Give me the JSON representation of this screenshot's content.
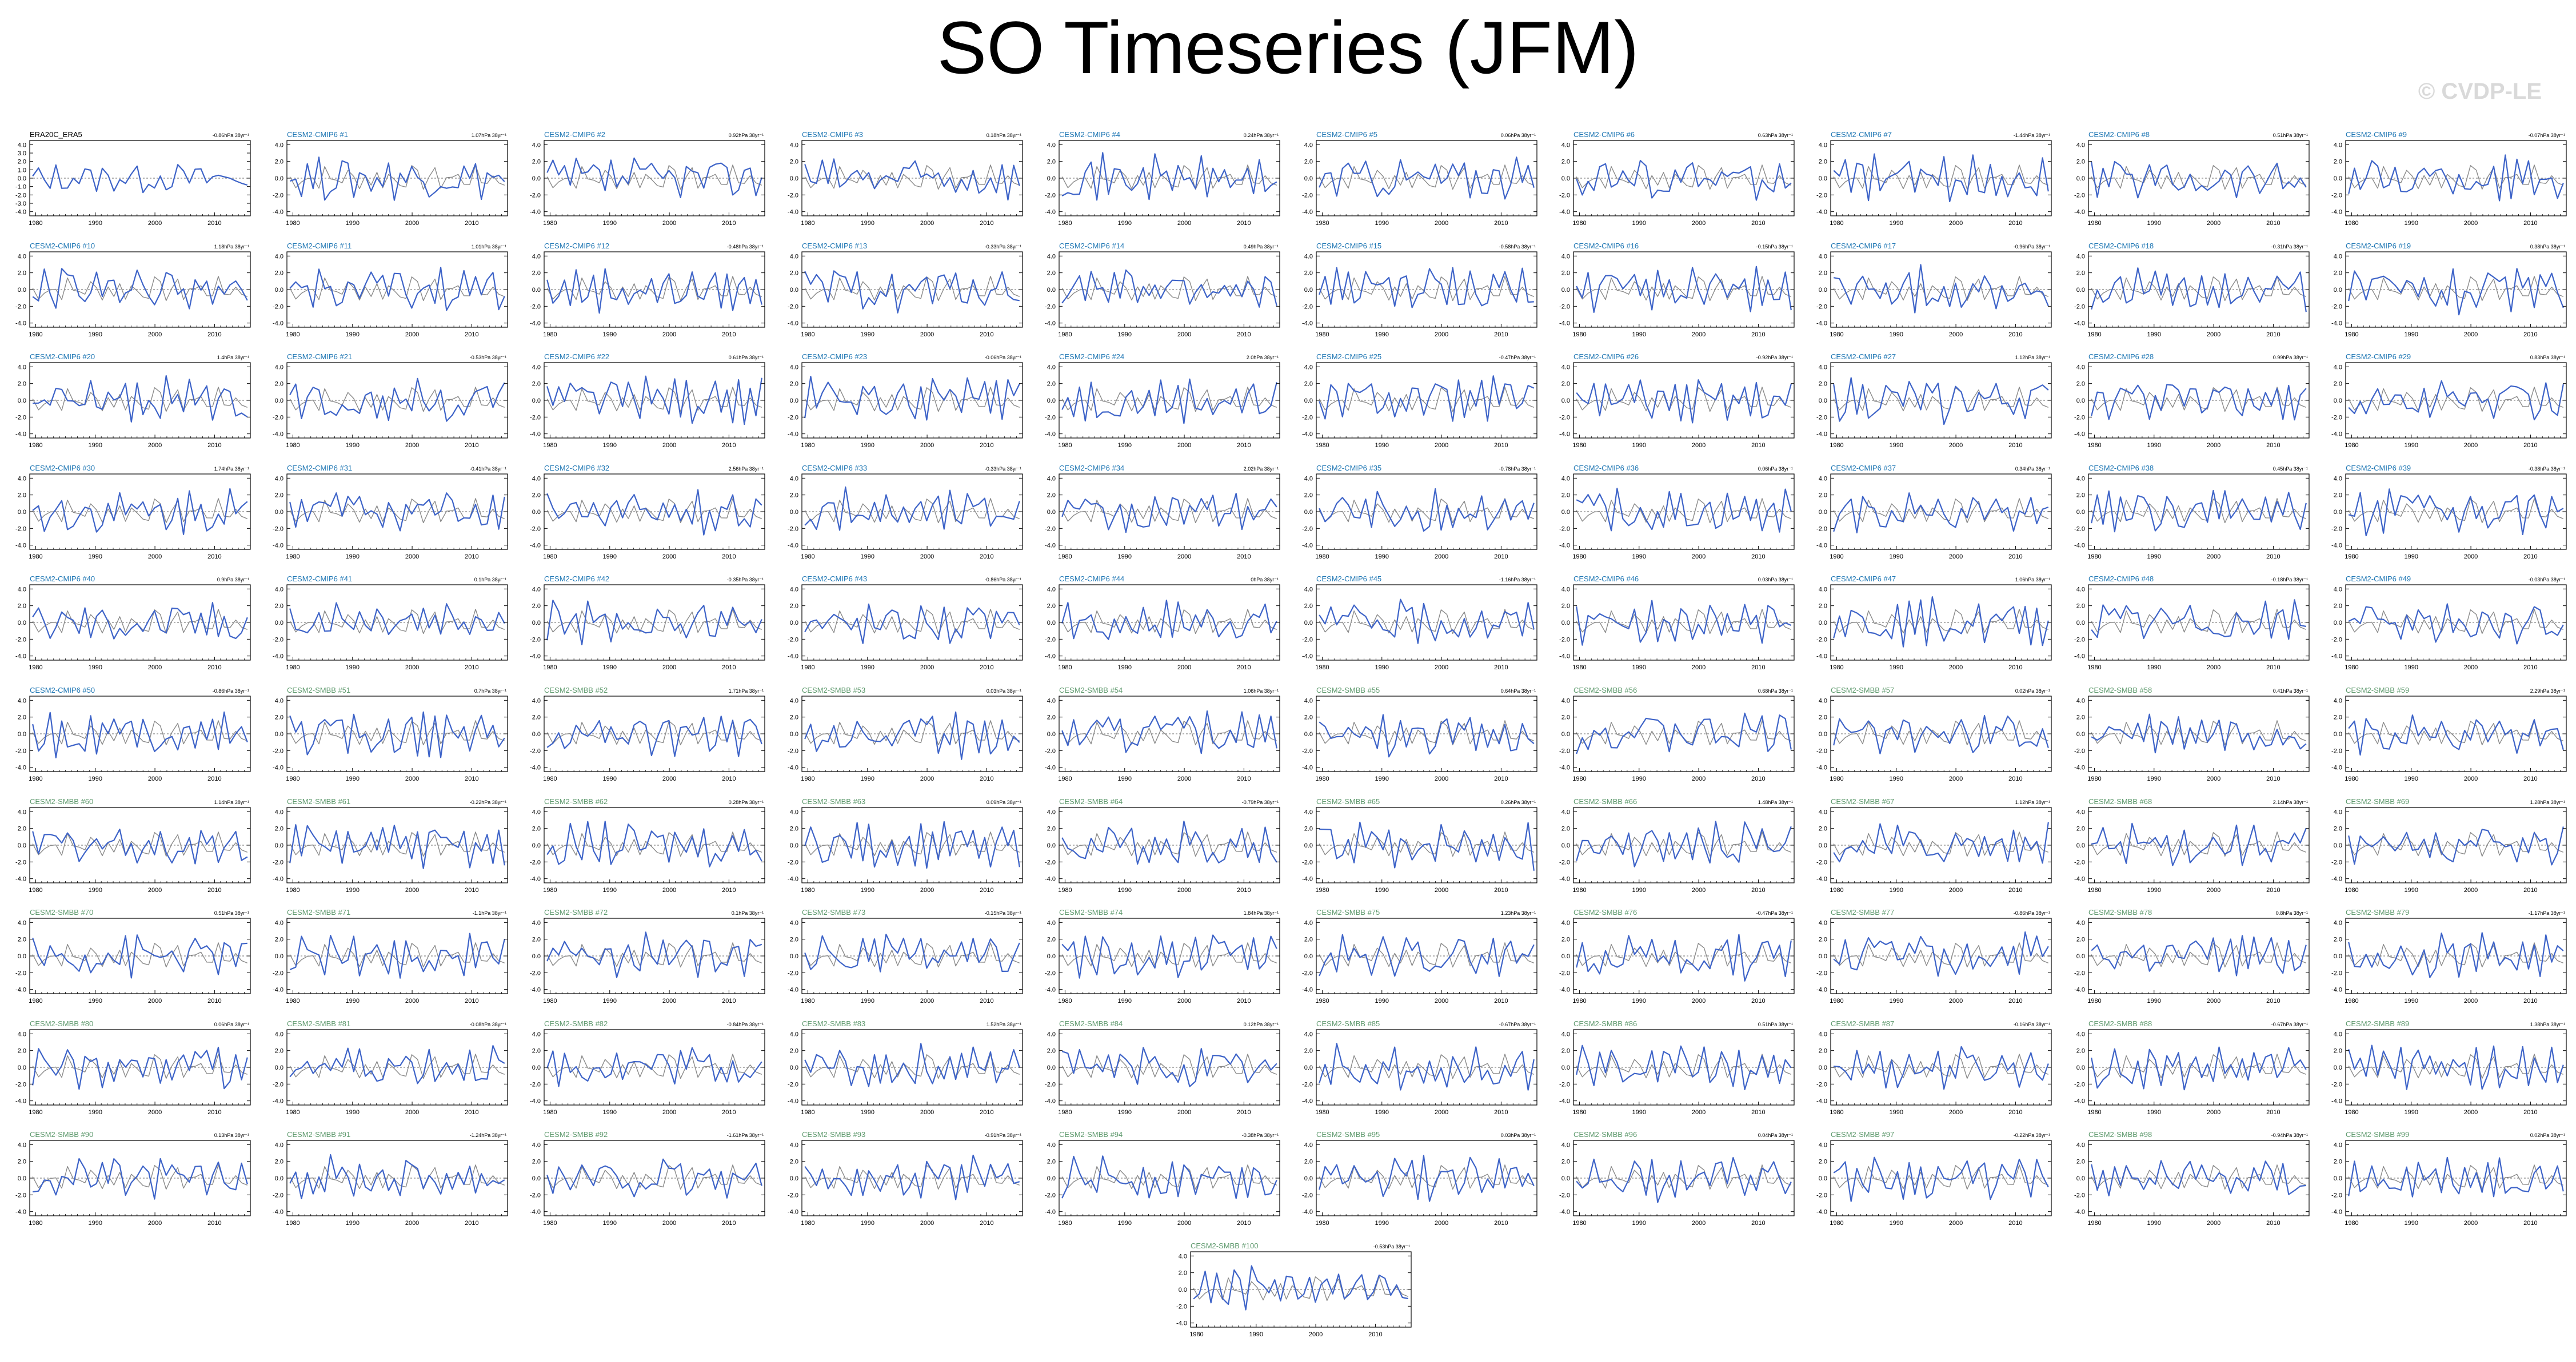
{
  "title": "SO Timeseries (JFM)",
  "watermark": "© CVDP-LE",
  "colors": {
    "ensemble_line": "#3d63c8",
    "observed_line": "#8a8a8a",
    "obs_title": "#000000",
    "cmip6_title": "#1f77b4",
    "smbb_title": "#5f9a6e",
    "axis": "#000000"
  },
  "chart_data": {
    "type": "line",
    "layout": "small-multiples grid, 10 columns x 10 rows plus one centered panel",
    "x_axis": {
      "range": [
        1979,
        2016
      ],
      "ticks": [
        1980,
        1990,
        2000,
        2010
      ],
      "tick_labels": [
        "1980",
        "1990",
        "2000",
        "2010"
      ]
    },
    "y_axis_obs": {
      "range": [
        -4.5,
        4.5
      ],
      "ticks": [
        -4.0,
        -3.0,
        -2.0,
        -1.0,
        0.0,
        1.0,
        2.0,
        3.0,
        4.0
      ],
      "tick_labels": [
        "-4.0",
        "-3.0",
        "-2.0",
        "-1.0",
        "0.0",
        "1.0",
        "2.0",
        "3.0",
        "4.0"
      ]
    },
    "y_axis": {
      "range": [
        -4.5,
        4.5
      ],
      "ticks": [
        -4.0,
        -2.0,
        0.0,
        2.0,
        4.0
      ],
      "tick_labels": [
        "-4.0",
        "-2.0",
        "0.0",
        "2.0",
        "4.0"
      ]
    },
    "panels": [
      {
        "label": "ERA20C_ERA5",
        "trend": "-0.86hPa 38yr⁻¹"
      },
      {
        "label": "CESM2-CMIP6 #1",
        "trend": "1.07hPa 38yr⁻¹"
      },
      {
        "label": "CESM2-CMIP6 #2",
        "trend": "0.92hPa 38yr⁻¹"
      },
      {
        "label": "CESM2-CMIP6 #3",
        "trend": "0.18hPa 38yr⁻¹"
      },
      {
        "label": "CESM2-CMIP6 #4",
        "trend": "0.24hPa 38yr⁻¹"
      },
      {
        "label": "CESM2-CMIP6 #5",
        "trend": "0.06hPa 38yr⁻¹"
      },
      {
        "label": "CESM2-CMIP6 #6",
        "trend": "0.63hPa 38yr⁻¹"
      },
      {
        "label": "CESM2-CMIP6 #7",
        "trend": "-1.44hPa 38yr⁻¹"
      },
      {
        "label": "CESM2-CMIP6 #8",
        "trend": "0.51hPa 38yr⁻¹"
      },
      {
        "label": "CESM2-CMIP6 #9",
        "trend": "-0.07hPa 38yr⁻¹"
      },
      {
        "label": "CESM2-CMIP6 #10",
        "trend": "1.18hPa 38yr⁻¹"
      },
      {
        "label": "CESM2-CMIP6 #11",
        "trend": "1.01hPa 38yr⁻¹"
      },
      {
        "label": "CESM2-CMIP6 #12",
        "trend": "-0.48hPa 38yr⁻¹"
      },
      {
        "label": "CESM2-CMIP6 #13",
        "trend": "-0.33hPa 38yr⁻¹"
      },
      {
        "label": "CESM2-CMIP6 #14",
        "trend": "0.49hPa 38yr⁻¹"
      },
      {
        "label": "CESM2-CMIP6 #15",
        "trend": "-0.58hPa 38yr⁻¹"
      },
      {
        "label": "CESM2-CMIP6 #16",
        "trend": "-0.15hPa 38yr⁻¹"
      },
      {
        "label": "CESM2-CMIP6 #17",
        "trend": "-0.96hPa 38yr⁻¹"
      },
      {
        "label": "CESM2-CMIP6 #18",
        "trend": "-0.31hPa 38yr⁻¹"
      },
      {
        "label": "CESM2-CMIP6 #19",
        "trend": "0.38hPa 38yr⁻¹"
      },
      {
        "label": "CESM2-CMIP6 #20",
        "trend": "1.4hPa 38yr⁻¹"
      },
      {
        "label": "CESM2-CMIP6 #21",
        "trend": "-0.53hPa 38yr⁻¹"
      },
      {
        "label": "CESM2-CMIP6 #22",
        "trend": "0.61hPa 38yr⁻¹"
      },
      {
        "label": "CESM2-CMIP6 #23",
        "trend": "-0.06hPa 38yr⁻¹"
      },
      {
        "label": "CESM2-CMIP6 #24",
        "trend": "2.0hPa 38yr⁻¹"
      },
      {
        "label": "CESM2-CMIP6 #25",
        "trend": "-0.47hPa 38yr⁻¹"
      },
      {
        "label": "CESM2-CMIP6 #26",
        "trend": "-0.92hPa 38yr⁻¹"
      },
      {
        "label": "CESM2-CMIP6 #27",
        "trend": "1.12hPa 38yr⁻¹"
      },
      {
        "label": "CESM2-CMIP6 #28",
        "trend": "0.99hPa 38yr⁻¹"
      },
      {
        "label": "CESM2-CMIP6 #29",
        "trend": "0.83hPa 38yr⁻¹"
      },
      {
        "label": "CESM2-CMIP6 #30",
        "trend": "1.74hPa 38yr⁻¹"
      },
      {
        "label": "CESM2-CMIP6 #31",
        "trend": "-0.41hPa 38yr⁻¹"
      },
      {
        "label": "CESM2-CMIP6 #32",
        "trend": "2.56hPa 38yr⁻¹"
      },
      {
        "label": "CESM2-CMIP6 #33",
        "trend": "-0.33hPa 38yr⁻¹"
      },
      {
        "label": "CESM2-CMIP6 #34",
        "trend": "2.02hPa 38yr⁻¹"
      },
      {
        "label": "CESM2-CMIP6 #35",
        "trend": "-0.78hPa 38yr⁻¹"
      },
      {
        "label": "CESM2-CMIP6 #36",
        "trend": "0.06hPa 38yr⁻¹"
      },
      {
        "label": "CESM2-CMIP6 #37",
        "trend": "0.34hPa 38yr⁻¹"
      },
      {
        "label": "CESM2-CMIP6 #38",
        "trend": "0.45hPa 38yr⁻¹"
      },
      {
        "label": "CESM2-CMIP6 #39",
        "trend": "-0.38hPa 38yr⁻¹"
      },
      {
        "label": "CESM2-CMIP6 #40",
        "trend": "0.9hPa 38yr⁻¹"
      },
      {
        "label": "CESM2-CMIP6 #41",
        "trend": "0.1hPa 38yr⁻¹"
      },
      {
        "label": "CESM2-CMIP6 #42",
        "trend": "-0.35hPa 38yr⁻¹"
      },
      {
        "label": "CESM2-CMIP6 #43",
        "trend": "-0.86hPa 38yr⁻¹"
      },
      {
        "label": "CESM2-CMIP6 #44",
        "trend": "0hPa 38yr⁻¹"
      },
      {
        "label": "CESM2-CMIP6 #45",
        "trend": "-1.16hPa 38yr⁻¹"
      },
      {
        "label": "CESM2-CMIP6 #46",
        "trend": "0.03hPa 38yr⁻¹"
      },
      {
        "label": "CESM2-CMIP6 #47",
        "trend": "1.06hPa 38yr⁻¹"
      },
      {
        "label": "CESM2-CMIP6 #48",
        "trend": "-0.18hPa 38yr⁻¹"
      },
      {
        "label": "CESM2-CMIP6 #49",
        "trend": "-0.03hPa 38yr⁻¹"
      },
      {
        "label": "CESM2-CMIP6 #50",
        "trend": "-0.86hPa 38yr⁻¹"
      },
      {
        "label": "CESM2-SMBB #51",
        "trend": "0.7hPa 38yr⁻¹"
      },
      {
        "label": "CESM2-SMBB #52",
        "trend": "1.71hPa 38yr⁻¹"
      },
      {
        "label": "CESM2-SMBB #53",
        "trend": "0.03hPa 38yr⁻¹"
      },
      {
        "label": "CESM2-SMBB #54",
        "trend": "1.06hPa 38yr⁻¹"
      },
      {
        "label": "CESM2-SMBB #55",
        "trend": "0.64hPa 38yr⁻¹"
      },
      {
        "label": "CESM2-SMBB #56",
        "trend": "0.68hPa 38yr⁻¹"
      },
      {
        "label": "CESM2-SMBB #57",
        "trend": "0.02hPa 38yr⁻¹"
      },
      {
        "label": "CESM2-SMBB #58",
        "trend": "0.41hPa 38yr⁻¹"
      },
      {
        "label": "CESM2-SMBB #59",
        "trend": "2.29hPa 38yr⁻¹"
      },
      {
        "label": "CESM2-SMBB #60",
        "trend": "1.14hPa 38yr⁻¹"
      },
      {
        "label": "CESM2-SMBB #61",
        "trend": "-0.22hPa 38yr⁻¹"
      },
      {
        "label": "CESM2-SMBB #62",
        "trend": "0.28hPa 38yr⁻¹"
      },
      {
        "label": "CESM2-SMBB #63",
        "trend": "0.09hPa 38yr⁻¹"
      },
      {
        "label": "CESM2-SMBB #64",
        "trend": "-0.79hPa 38yr⁻¹"
      },
      {
        "label": "CESM2-SMBB #65",
        "trend": "0.26hPa 38yr⁻¹"
      },
      {
        "label": "CESM2-SMBB #66",
        "trend": "1.48hPa 38yr⁻¹"
      },
      {
        "label": "CESM2-SMBB #67",
        "trend": "1.12hPa 38yr⁻¹"
      },
      {
        "label": "CESM2-SMBB #68",
        "trend": "2.14hPa 38yr⁻¹"
      },
      {
        "label": "CESM2-SMBB #69",
        "trend": "1.28hPa 38yr⁻¹"
      },
      {
        "label": "CESM2-SMBB #70",
        "trend": "0.51hPa 38yr⁻¹"
      },
      {
        "label": "CESM2-SMBB #71",
        "trend": "-1.1hPa 38yr⁻¹"
      },
      {
        "label": "CESM2-SMBB #72",
        "trend": "0.1hPa 38yr⁻¹"
      },
      {
        "label": "CESM2-SMBB #73",
        "trend": "-0.15hPa 38yr⁻¹"
      },
      {
        "label": "CESM2-SMBB #74",
        "trend": "1.84hPa 38yr⁻¹"
      },
      {
        "label": "CESM2-SMBB #75",
        "trend": "1.23hPa 38yr⁻¹"
      },
      {
        "label": "CESM2-SMBB #76",
        "trend": "-0.47hPa 38yr⁻¹"
      },
      {
        "label": "CESM2-SMBB #77",
        "trend": "-0.86hPa 38yr⁻¹"
      },
      {
        "label": "CESM2-SMBB #78",
        "trend": "0.8hPa 38yr⁻¹"
      },
      {
        "label": "CESM2-SMBB #79",
        "trend": "-1.17hPa 38yr⁻¹"
      },
      {
        "label": "CESM2-SMBB #80",
        "trend": "0.06hPa 38yr⁻¹"
      },
      {
        "label": "CESM2-SMBB #81",
        "trend": "-0.08hPa 38yr⁻¹"
      },
      {
        "label": "CESM2-SMBB #82",
        "trend": "-0.84hPa 38yr⁻¹"
      },
      {
        "label": "CESM2-SMBB #83",
        "trend": "1.52hPa 38yr⁻¹"
      },
      {
        "label": "CESM2-SMBB #84",
        "trend": "0.12hPa 38yr⁻¹"
      },
      {
        "label": "CESM2-SMBB #85",
        "trend": "-0.67hPa 38yr⁻¹"
      },
      {
        "label": "CESM2-SMBB #86",
        "trend": "0.51hPa 38yr⁻¹"
      },
      {
        "label": "CESM2-SMBB #87",
        "trend": "-0.16hPa 38yr⁻¹"
      },
      {
        "label": "CESM2-SMBB #88",
        "trend": "-0.67hPa 38yr⁻¹"
      },
      {
        "label": "CESM2-SMBB #89",
        "trend": "1.38hPa 38yr⁻¹"
      },
      {
        "label": "CESM2-SMBB #90",
        "trend": "0.13hPa 38yr⁻¹"
      },
      {
        "label": "CESM2-SMBB #91",
        "trend": "-1.24hPa 38yr⁻¹"
      },
      {
        "label": "CESM2-SMBB #92",
        "trend": "-1.61hPa 38yr⁻¹"
      },
      {
        "label": "CESM2-SMBB #93",
        "trend": "-0.91hPa 38yr⁻¹"
      },
      {
        "label": "CESM2-SMBB #94",
        "trend": "-0.38hPa 38yr⁻¹"
      },
      {
        "label": "CESM2-SMBB #95",
        "trend": "0.03hPa 38yr⁻¹"
      },
      {
        "label": "CESM2-SMBB #96",
        "trend": "0.04hPa 38yr⁻¹"
      },
      {
        "label": "CESM2-SMBB #97",
        "trend": "-0.22hPa 38yr⁻¹"
      },
      {
        "label": "CESM2-SMBB #98",
        "trend": "-0.94hPa 38yr⁻¹"
      },
      {
        "label": "CESM2-SMBB #99",
        "trend": "0.02hPa 38yr⁻¹"
      },
      {
        "label": "CESM2-SMBB #100",
        "trend": "-0.53hPa 38yr⁻¹"
      }
    ]
  }
}
